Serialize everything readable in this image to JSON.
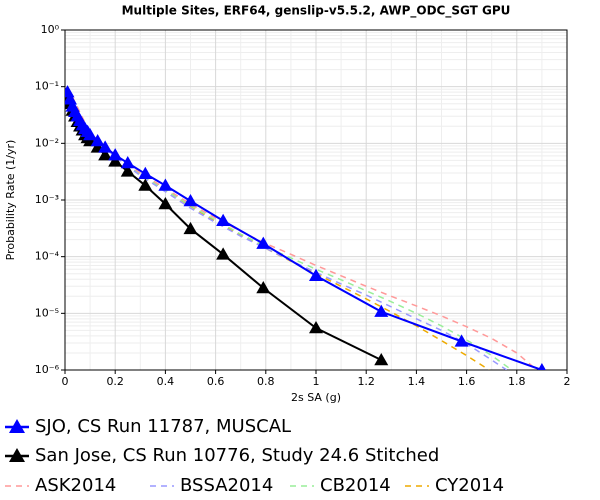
{
  "chart_data": {
    "type": "line",
    "title": "Multiple Sites, ERF64, genslip-v5.5.2, AWP_ODC_SGT GPU",
    "x_label": "2s SA (g)",
    "y_label": "Probability Rate (1/yr)",
    "xlim": [
      0,
      2
    ],
    "xticks": [
      0,
      0.2,
      0.4,
      0.6,
      0.8,
      1,
      1.2,
      1.4,
      1.6,
      1.8,
      2
    ],
    "ylim": [
      1e-06,
      1
    ],
    "y_log": true,
    "yticks": [
      {
        "value": 1,
        "label": "10⁰"
      },
      {
        "value": 0.1,
        "label": "10⁻¹"
      },
      {
        "value": 0.01,
        "label": "10⁻²"
      },
      {
        "value": 0.001,
        "label": "10⁻³"
      },
      {
        "value": 0.0001,
        "label": "10⁻⁴"
      },
      {
        "value": 1e-05,
        "label": "10⁻⁵"
      },
      {
        "value": 1e-06,
        "label": "10⁻⁶"
      }
    ],
    "grid": true,
    "legend": "bottom",
    "series": [
      {
        "name": "SJO, CS Run 11787, MUSCAL",
        "color": "#0000ff",
        "marker": "triangle",
        "dashed": false,
        "x": [
          0.01,
          0.02,
          0.03,
          0.04,
          0.05,
          0.06,
          0.07,
          0.08,
          0.09,
          0.1,
          0.13,
          0.16,
          0.2,
          0.25,
          0.32,
          0.4,
          0.5,
          0.63,
          0.79,
          1.0,
          1.26,
          1.58,
          1.9
        ],
        "values": [
          0.08,
          0.06,
          0.045,
          0.036,
          0.03,
          0.025,
          0.021,
          0.018,
          0.016,
          0.014,
          0.011,
          0.0085,
          0.0062,
          0.0045,
          0.0029,
          0.0018,
          0.00096,
          0.00043,
          0.00017,
          4.6e-05,
          1.07e-05,
          3.2e-06,
          1e-06
        ]
      },
      {
        "name": "San Jose, CS Run 10776, Study 24.6 Stitched",
        "color": "#000000",
        "marker": "triangle",
        "dashed": false,
        "x": [
          0.01,
          0.02,
          0.03,
          0.04,
          0.05,
          0.06,
          0.07,
          0.08,
          0.09,
          0.1,
          0.13,
          0.16,
          0.2,
          0.25,
          0.32,
          0.4,
          0.5,
          0.63,
          0.79,
          1.0,
          1.26
        ],
        "values": [
          0.07,
          0.05,
          0.038,
          0.03,
          0.024,
          0.02,
          0.017,
          0.014,
          0.0125,
          0.011,
          0.0085,
          0.0062,
          0.0048,
          0.0032,
          0.0018,
          0.00085,
          0.00031,
          0.00011,
          2.8e-05,
          5.5e-06,
          1.5e-06
        ]
      },
      {
        "name": "ASK2014",
        "color": "#ff9999",
        "marker": "none",
        "dashed": true,
        "x": [
          0.01,
          0.1,
          0.2,
          0.3,
          0.4,
          0.5,
          0.6,
          0.7,
          0.8,
          0.9,
          1.0,
          1.1,
          1.2,
          1.3,
          1.4,
          1.5,
          1.6,
          1.7,
          1.8,
          1.88
        ],
        "values": [
          0.1,
          0.015,
          0.0062,
          0.003,
          0.0016,
          0.00085,
          0.00048,
          0.00028,
          0.00017,
          0.00011,
          7e-05,
          4.6e-05,
          3e-05,
          2e-05,
          1.35e-05,
          9e-06,
          5.8e-06,
          3.6e-06,
          2e-06,
          1e-06
        ]
      },
      {
        "name": "BSSA2014",
        "color": "#9999ff",
        "marker": "none",
        "dashed": true,
        "x": [
          0.01,
          0.1,
          0.2,
          0.3,
          0.4,
          0.5,
          0.6,
          0.7,
          0.8,
          0.9,
          1.0,
          1.1,
          1.2,
          1.3,
          1.4,
          1.5,
          1.6,
          1.7,
          1.76
        ],
        "values": [
          0.1,
          0.014,
          0.0058,
          0.0027,
          0.0014,
          0.00072,
          0.0004,
          0.00023,
          0.00014,
          8.5e-05,
          5.3e-05,
          3.3e-05,
          2.1e-05,
          1.3e-05,
          8e-06,
          5e-06,
          2.9e-06,
          1.5e-06,
          1e-06
        ]
      },
      {
        "name": "CB2014",
        "color": "#99ee99",
        "marker": "none",
        "dashed": true,
        "x": [
          0.01,
          0.1,
          0.2,
          0.3,
          0.4,
          0.5,
          0.6,
          0.7,
          0.8,
          0.9,
          1.0,
          1.1,
          1.2,
          1.3,
          1.4,
          1.5,
          1.6,
          1.7,
          1.78
        ],
        "values": [
          0.1,
          0.014,
          0.006,
          0.0028,
          0.0015,
          0.0008,
          0.00044,
          0.00025,
          0.00015,
          9.5e-05,
          6e-05,
          3.9e-05,
          2.5e-05,
          1.6e-05,
          1e-05,
          6e-06,
          3.4e-06,
          1.8e-06,
          1e-06
        ]
      },
      {
        "name": "CY2014",
        "color": "#eeaa00",
        "marker": "none",
        "dashed": true,
        "x": [
          0.01,
          0.1,
          0.2,
          0.3,
          0.4,
          0.5,
          0.6,
          0.7,
          0.8,
          0.9,
          1.0,
          1.1,
          1.2,
          1.3,
          1.4,
          1.5,
          1.6,
          1.69
        ],
        "values": [
          0.1,
          0.014,
          0.006,
          0.0028,
          0.0015,
          0.00078,
          0.00042,
          0.00024,
          0.00014,
          8.3e-05,
          5e-05,
          3e-05,
          1.8e-05,
          1.05e-05,
          6e-06,
          3.3e-06,
          1.8e-06,
          1e-06
        ]
      }
    ]
  }
}
